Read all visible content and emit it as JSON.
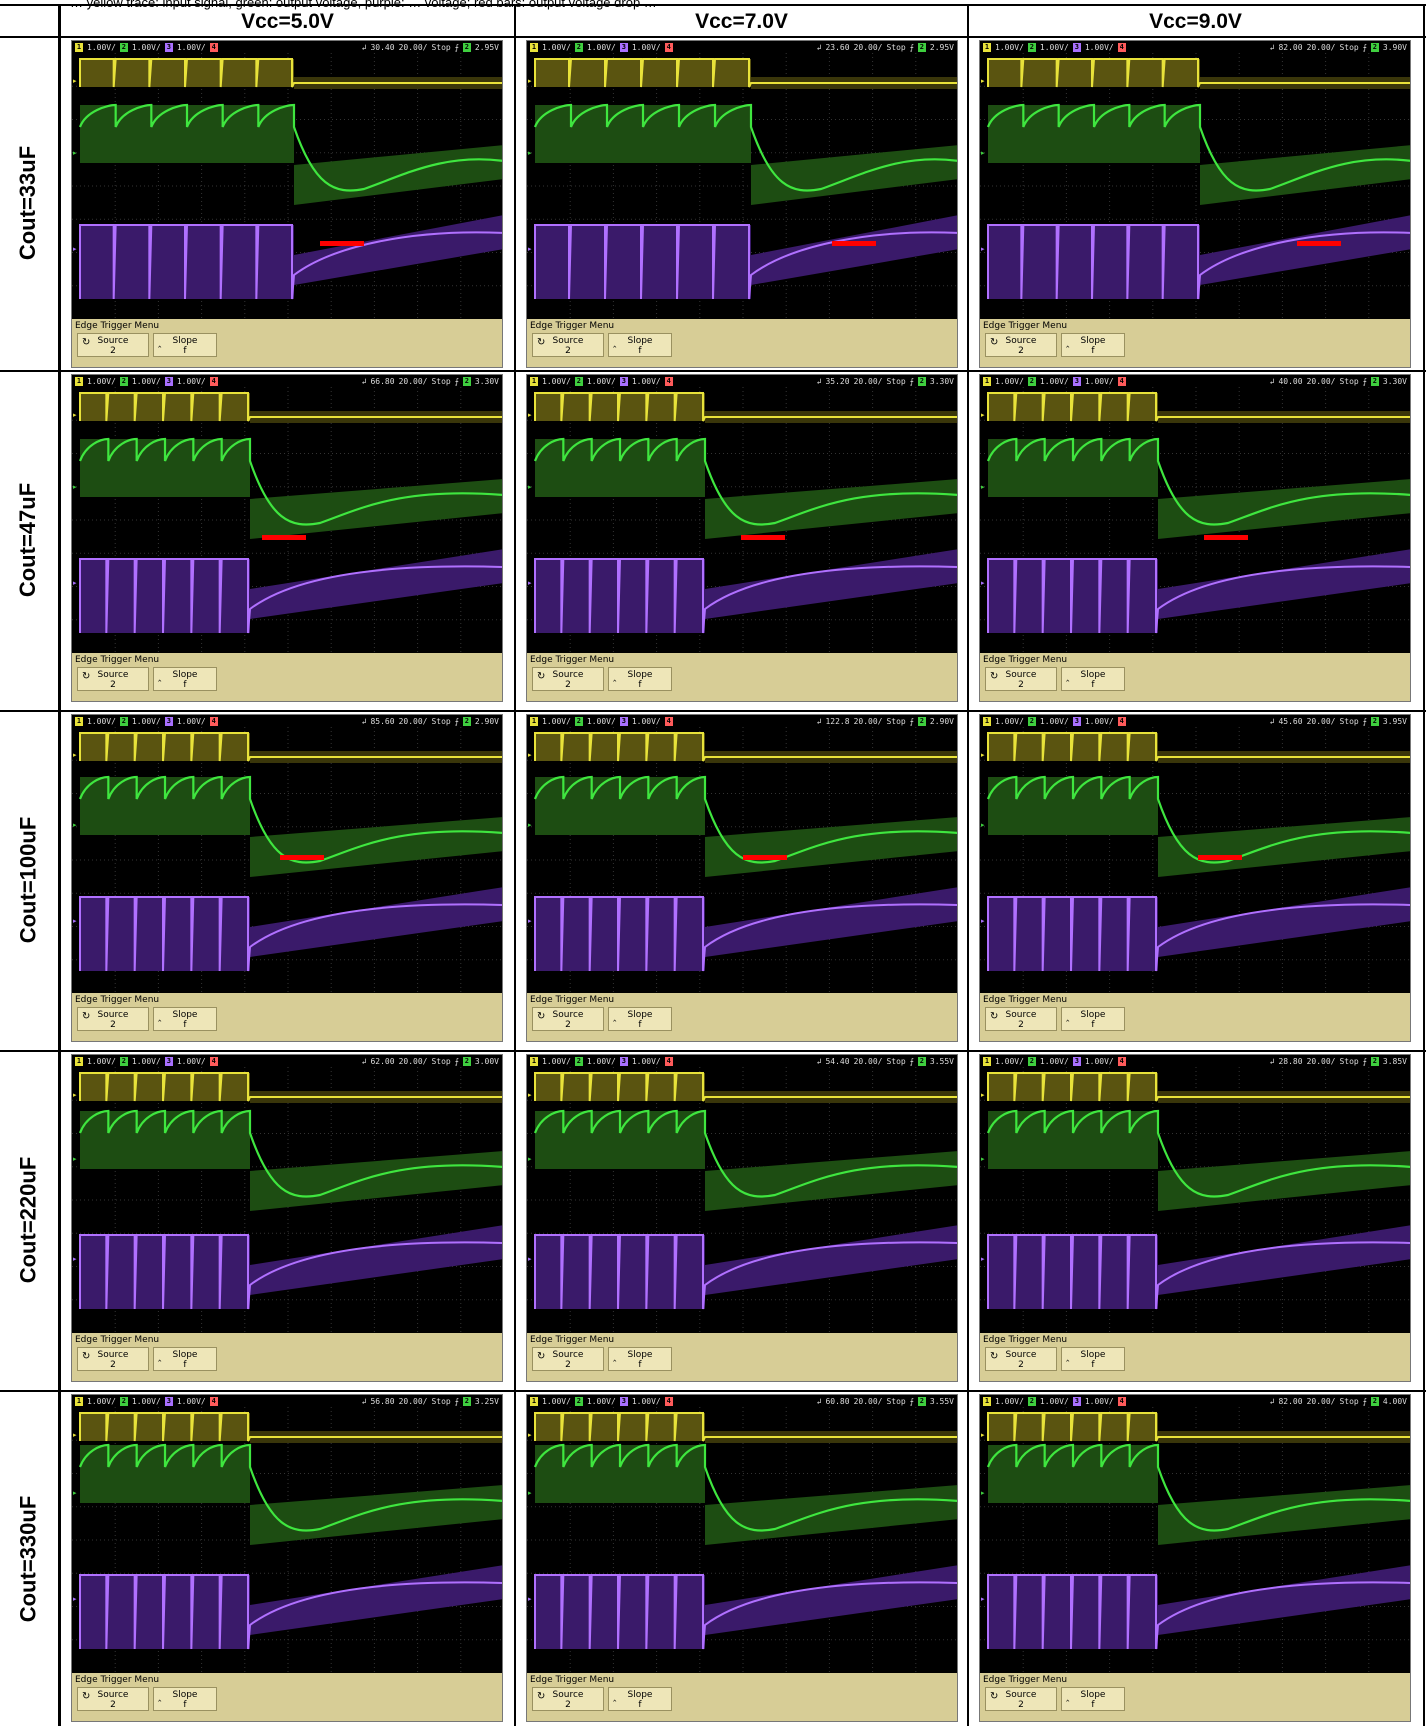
{
  "caption": "… yellow trace: input signal, green: output voltage, purple: … voltage; red bars: output voltage drop …",
  "columns": [
    "Vcc=5.0V",
    "Vcc=7.0V",
    "Vcc=9.0V"
  ],
  "rows": [
    "Cout=33uF",
    "Cout=47uF",
    "Cout=100uF",
    "Cout=220uF",
    "Cout=330uF"
  ],
  "menu": {
    "title": "Edge Trigger Menu",
    "source_label": "Source",
    "source_value": "2",
    "slope_label": "Slope",
    "slope_value": "f"
  },
  "colors": {
    "ch1": "#e8e23a",
    "ch2": "#3fcf3f",
    "ch3": "#a970ff",
    "ch4": "#ff5b5b",
    "marker": "#ff0000",
    "menu_bg": "#d7cd96"
  },
  "screens": [
    {
      "ch1": "1.00V/",
      "ch2": "1.00V/",
      "ch3": "1.00V/",
      "ch4": "4",
      "delay": "30.40",
      "timebase": "20.00/",
      "mode": "Stop",
      "trig_ch": "2",
      "trig_level": "2.95V"
    },
    {
      "ch1": "1.00V/",
      "ch2": "1.00V/",
      "ch3": "1.00V/",
      "ch4": "4",
      "delay": "23.60",
      "timebase": "20.00/",
      "mode": "Stop",
      "trig_ch": "2",
      "trig_level": "2.95V"
    },
    {
      "ch1": "1.00V/",
      "ch2": "1.00V/",
      "ch3": "1.00V/",
      "ch4": "4",
      "delay": "82.00",
      "timebase": "20.00/",
      "mode": "Stop",
      "trig_ch": "2",
      "trig_level": "3.90V"
    },
    {
      "ch1": "1.00V/",
      "ch2": "1.00V/",
      "ch3": "1.00V/",
      "ch4": "4",
      "delay": "66.80",
      "timebase": "20.00/",
      "mode": "Stop",
      "trig_ch": "2",
      "trig_level": "3.30V"
    },
    {
      "ch1": "1.00V/",
      "ch2": "1.00V/",
      "ch3": "1.00V/",
      "ch4": "4",
      "delay": "35.20",
      "timebase": "20.00/",
      "mode": "Stop",
      "trig_ch": "2",
      "trig_level": "3.30V"
    },
    {
      "ch1": "1.00V/",
      "ch2": "1.00V/",
      "ch3": "1.00V/",
      "ch4": "4",
      "delay": "40.00",
      "timebase": "20.00/",
      "mode": "Stop",
      "trig_ch": "2",
      "trig_level": "3.30V"
    },
    {
      "ch1": "1.00V/",
      "ch2": "1.00V/",
      "ch3": "1.00V/",
      "ch4": "4",
      "delay": "85.60",
      "timebase": "20.00/",
      "mode": "Stop",
      "trig_ch": "2",
      "trig_level": "2.90V"
    },
    {
      "ch1": "1.00V/",
      "ch2": "1.00V/",
      "ch3": "1.00V/",
      "ch4": "4",
      "delay": "122.8",
      "timebase": "20.00/",
      "mode": "Stop",
      "trig_ch": "2",
      "trig_level": "2.90V"
    },
    {
      "ch1": "1.00V/",
      "ch2": "1.00V/",
      "ch3": "1.00V/",
      "ch4": "4",
      "delay": "45.60",
      "timebase": "20.00/",
      "mode": "Stop",
      "trig_ch": "2",
      "trig_level": "3.95V"
    },
    {
      "ch1": "1.00V/",
      "ch2": "1.00V/",
      "ch3": "1.00V/",
      "ch4": "4",
      "delay": "62.00",
      "timebase": "20.00/",
      "mode": "Stop",
      "trig_ch": "2",
      "trig_level": "3.00V"
    },
    {
      "ch1": "1.00V/",
      "ch2": "1.00V/",
      "ch3": "1.00V/",
      "ch4": "4",
      "delay": "54.40",
      "timebase": "20.00/",
      "mode": "Stop",
      "trig_ch": "2",
      "trig_level": "3.55V"
    },
    {
      "ch1": "1.00V/",
      "ch2": "1.00V/",
      "ch3": "1.00V/",
      "ch4": "4",
      "delay": "28.80",
      "timebase": "20.00/",
      "mode": "Stop",
      "trig_ch": "2",
      "trig_level": "3.85V"
    },
    {
      "ch1": "1.00V/",
      "ch2": "1.00V/",
      "ch3": "1.00V/",
      "ch4": "4",
      "delay": "56.80",
      "timebase": "20.00/",
      "mode": "Stop",
      "trig_ch": "2",
      "trig_level": "3.25V"
    },
    {
      "ch1": "1.00V/",
      "ch2": "1.00V/",
      "ch3": "1.00V/",
      "ch4": "4",
      "delay": "60.80",
      "timebase": "20.00/",
      "mode": "Stop",
      "trig_ch": "2",
      "trig_level": "3.55V"
    },
    {
      "ch1": "1.00V/",
      "ch2": "1.00V/",
      "ch3": "1.00V/",
      "ch4": "4",
      "delay": "82.00",
      "timebase": "20.00/",
      "mode": "Stop",
      "trig_ch": "2",
      "trig_level": "4.00V"
    }
  ]
}
